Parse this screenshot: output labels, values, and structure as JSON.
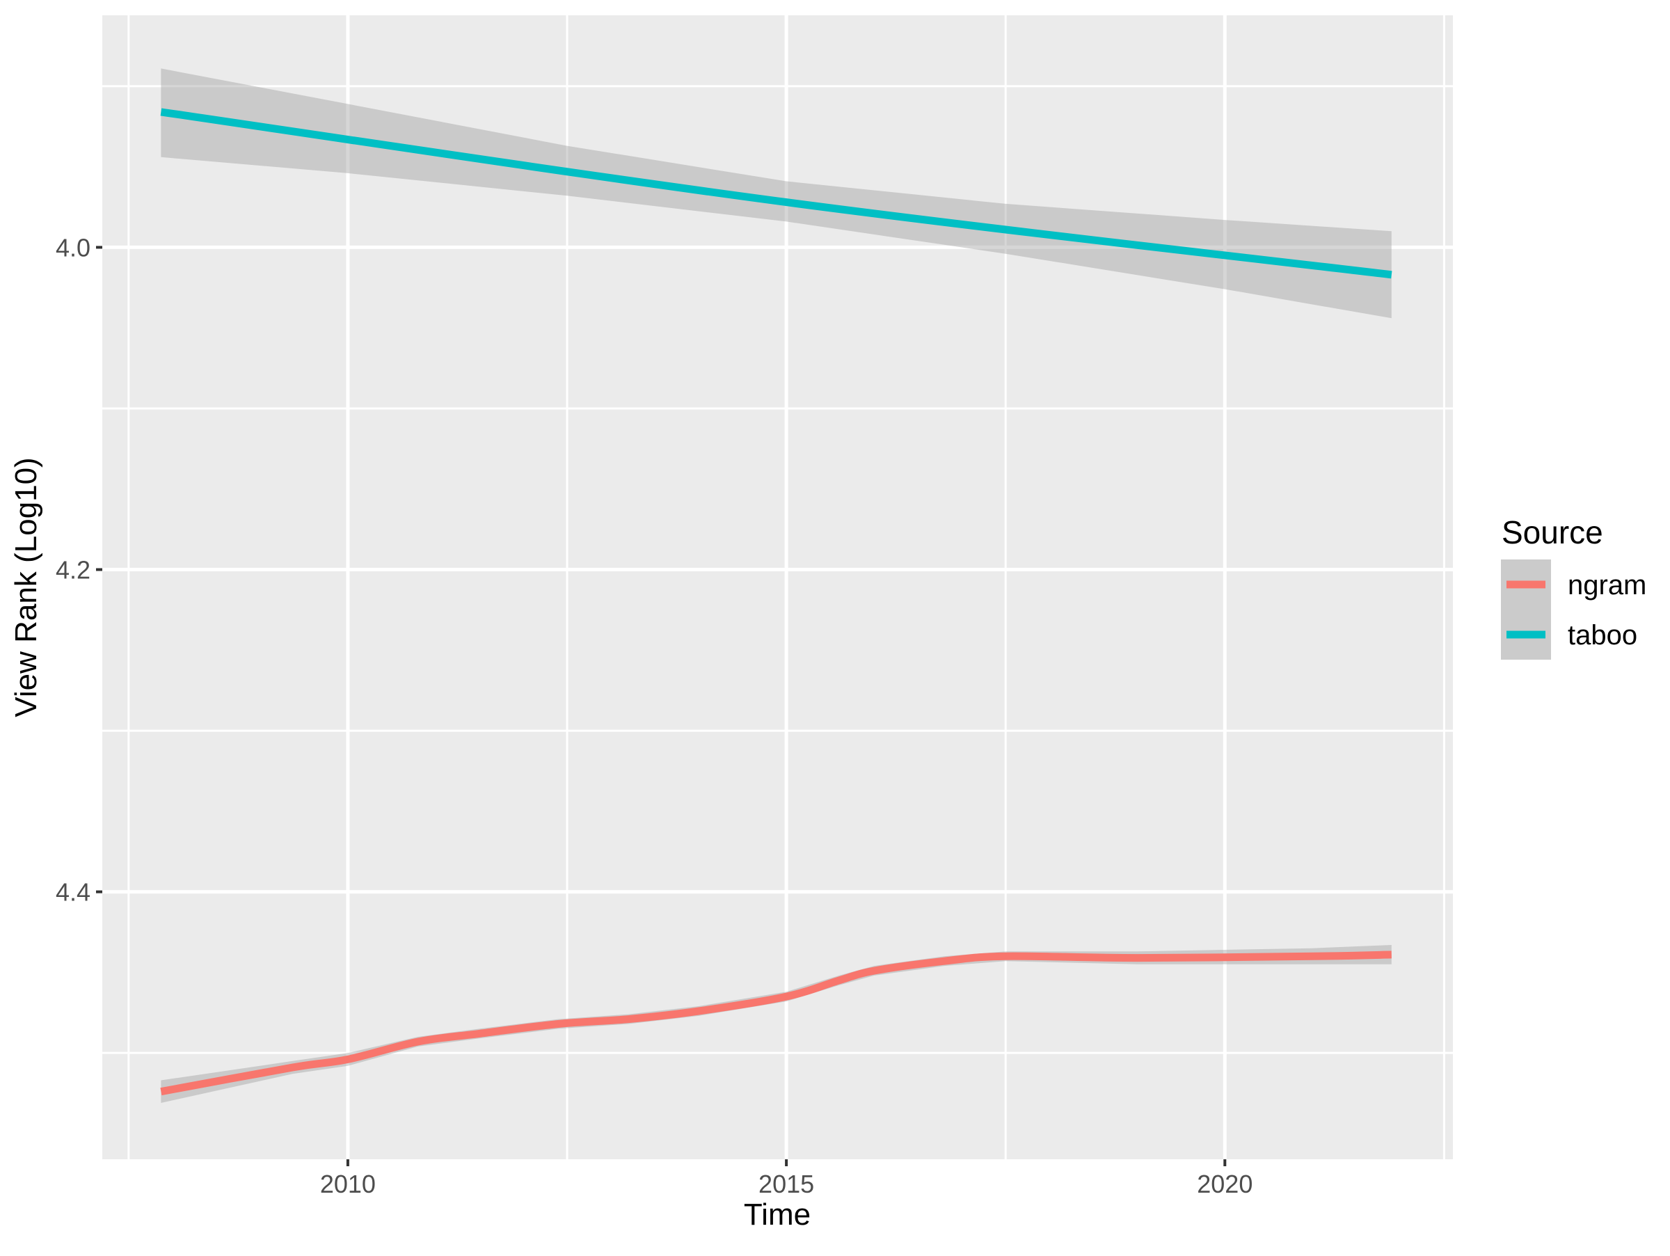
{
  "colors": {
    "background": "#FFFFFF",
    "panel": "#EBEBEB",
    "grid": "#FFFFFF",
    "tick_mark": "#333333",
    "tick_label": "#4D4D4D",
    "axis_title": "#000000",
    "ribbon_fill": "#999999",
    "legend_key_fill": "#CBCBCB"
  },
  "legend": {
    "title": "Source",
    "items": [
      {
        "label": "ngram",
        "color": "#F8766D"
      },
      {
        "label": "taboo",
        "color": "#00BFC4"
      }
    ]
  },
  "chart_data": {
    "type": "line",
    "title": "",
    "xlabel": "Time",
    "ylabel": "View Rank (Log10)",
    "x_domain": [
      2007.2,
      2022.6
    ],
    "y_domain_top_to_bottom": [
      3.856,
      4.566
    ],
    "y_axis_reversed": true,
    "grid": true,
    "legend_position": "right",
    "x_major_ticks": [
      {
        "v": 2010,
        "label": "2010"
      },
      {
        "v": 2015,
        "label": "2015"
      },
      {
        "v": 2020,
        "label": "2020"
      }
    ],
    "x_minor_ticks": [
      2007.5,
      2012.5,
      2017.5,
      2022.5
    ],
    "y_major_ticks": [
      {
        "v": 4.0,
        "label": "4.0"
      },
      {
        "v": 4.2,
        "label": "4.2"
      },
      {
        "v": 4.4,
        "label": "4.4"
      }
    ],
    "y_minor_ticks": [
      3.9,
      4.1,
      4.3,
      4.5
    ],
    "ci_fill": "#999999",
    "ci_opacity": 0.4,
    "line_width": 11,
    "series": [
      {
        "name": "ngram",
        "color": "#F8766D",
        "points": [
          [
            2007.87,
            4.524
          ],
          [
            2009.37,
            4.509
          ],
          [
            2010,
            4.504
          ],
          [
            2010.8,
            4.493
          ],
          [
            2011.5,
            4.488
          ],
          [
            2012.4,
            4.482
          ],
          [
            2013.2,
            4.479
          ],
          [
            2014,
            4.474
          ],
          [
            2015,
            4.465
          ],
          [
            2015.6,
            4.455
          ],
          [
            2016,
            4.449
          ],
          [
            2016.8,
            4.443
          ],
          [
            2017.5,
            4.44
          ],
          [
            2019,
            4.441
          ],
          [
            2021,
            4.44
          ],
          [
            2021.9,
            4.439
          ]
        ],
        "ci": [
          [
            2007.87,
            4.517,
            4.531
          ],
          [
            2009.37,
            4.505,
            4.513
          ],
          [
            2010,
            4.5,
            4.508
          ],
          [
            2010.8,
            4.49,
            4.496
          ],
          [
            2011.5,
            4.485,
            4.491
          ],
          [
            2012.4,
            4.479,
            4.485
          ],
          [
            2013.2,
            4.476,
            4.482
          ],
          [
            2014,
            4.471,
            4.477
          ],
          [
            2015,
            4.462,
            4.468
          ],
          [
            2015.6,
            4.452,
            4.458
          ],
          [
            2016,
            4.446,
            4.452
          ],
          [
            2016.8,
            4.44,
            4.446
          ],
          [
            2017.5,
            4.437,
            4.443
          ],
          [
            2019,
            4.437,
            4.445
          ],
          [
            2021,
            4.435,
            4.445
          ],
          [
            2021.9,
            4.433,
            4.445
          ]
        ]
      },
      {
        "name": "taboo",
        "color": "#00BFC4",
        "points": [
          [
            2007.87,
            3.916
          ],
          [
            2015,
            3.972
          ],
          [
            2021.9,
            4.017
          ]
        ],
        "ci": [
          [
            2007.87,
            3.889,
            3.944
          ],
          [
            2010,
            3.911,
            3.954
          ],
          [
            2012.5,
            3.937,
            3.968
          ],
          [
            2015,
            3.959,
            3.984
          ],
          [
            2017.5,
            3.973,
            4.004
          ],
          [
            2020,
            3.983,
            4.026
          ],
          [
            2021.9,
            3.99,
            4.044
          ]
        ]
      }
    ]
  }
}
